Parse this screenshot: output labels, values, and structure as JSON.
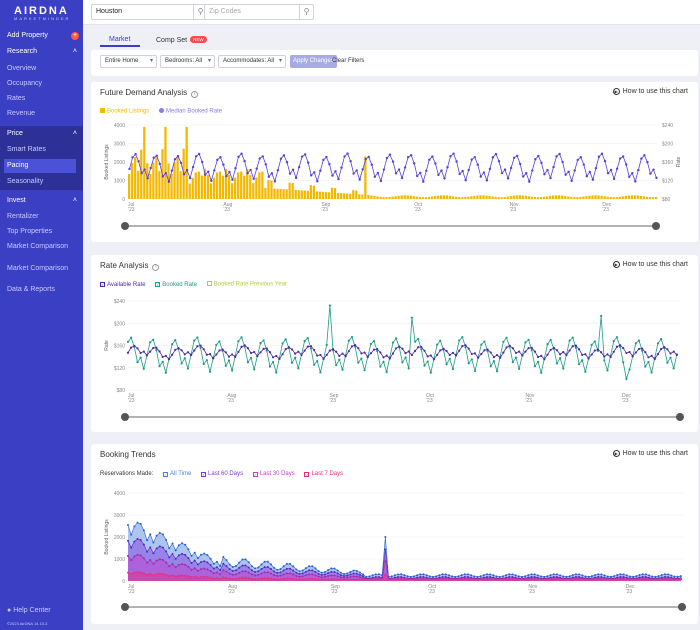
{
  "app": {
    "logo": "AIRDNA",
    "logo_sub": "MARKETMINDER",
    "footer": "©2023 AirDNA 14.10.2"
  },
  "sidebar": {
    "add_property": "Add Property",
    "research": {
      "label": "Research",
      "items": [
        "Overview",
        "Occupancy",
        "Rates",
        "Revenue"
      ]
    },
    "price": {
      "label": "Price",
      "items": [
        "Smart Rates",
        "Pacing",
        "Seasonality"
      ],
      "active": "Pacing"
    },
    "invest": {
      "label": "Invest",
      "items": [
        "Rentalizer",
        "Top Properties",
        "Market Comparison"
      ]
    },
    "market_comparison": "Market Comparison",
    "data_reports": "Data & Reports",
    "help": "Help Center"
  },
  "search": {
    "location_value": "Houston",
    "zip_placeholder": "Zip Codes"
  },
  "tabs": [
    {
      "label": "Market"
    },
    {
      "label": "Comp Set",
      "badge": "NEW"
    }
  ],
  "filters": {
    "home": "Entire Home",
    "bedrooms": "Bedrooms: All",
    "accommodates": "Accommodates: All",
    "apply": "Apply Changes",
    "clear": "Clear Filters"
  },
  "how_to": "How to use this chart",
  "colors": {
    "sidebar": "#3a3fc4",
    "accent": "#3a3fc4",
    "bars": "#f5b800",
    "median_rate": "#5b3fd6",
    "available": "#4b2aa8",
    "booked": "#1e9a86",
    "booked_prev": "#b5cc3c",
    "all_time": "#4a7fe0",
    "last60": "#7a35e0",
    "last30": "#c83ac8",
    "last7": "#e8307a"
  },
  "demand": {
    "title": "Future Demand Analysis",
    "legend": [
      "Booked Listings",
      "Median Booked Rate"
    ],
    "ylabel": "Booked Listings",
    "y2label": "Rate",
    "yticks": [
      "4000",
      "3000",
      "2000",
      "1000",
      "0"
    ],
    "y2ticks": [
      "$240",
      "$200",
      "$160",
      "$120",
      "$80"
    ],
    "xticks": [
      {
        "m": "Jul",
        "y": "'23"
      },
      {
        "m": "Aug",
        "y": "'23"
      },
      {
        "m": "Sep",
        "y": "'23"
      },
      {
        "m": "Oct",
        "y": "'23"
      },
      {
        "m": "Nov",
        "y": "'23"
      },
      {
        "m": "Dec",
        "y": "'23"
      }
    ]
  },
  "rate": {
    "title": "Rate Analysis",
    "legend": [
      "Available Rate",
      "Booked Rate",
      "Booked Rate Previous Year"
    ],
    "ylabel": "Rate",
    "yticks": [
      "$240",
      "$200",
      "$160",
      "$120",
      "$80"
    ],
    "xticks": [
      {
        "m": "Jul",
        "y": "'23"
      },
      {
        "m": "Aug",
        "y": "'23"
      },
      {
        "m": "Sep",
        "y": "'23"
      },
      {
        "m": "Oct",
        "y": "'23"
      },
      {
        "m": "Nov",
        "y": "'23"
      },
      {
        "m": "Dec",
        "y": "'23"
      }
    ]
  },
  "trends": {
    "title": "Booking Trends",
    "res_label": "Reservations Made:",
    "legend": [
      "All Time",
      "Last 60 Days",
      "Last 30 Days",
      "Last 7 Days"
    ],
    "ylabel": "Booked Listings",
    "yticks": [
      "4000",
      "3000",
      "2000",
      "1000",
      "0"
    ],
    "xticks": [
      {
        "m": "Jul",
        "y": "'23"
      },
      {
        "m": "Aug",
        "y": "'23"
      },
      {
        "m": "Sep",
        "y": "'23"
      },
      {
        "m": "Oct",
        "y": "'23"
      },
      {
        "m": "Nov",
        "y": "'23"
      },
      {
        "m": "Dec",
        "y": "'23"
      }
    ]
  }
}
